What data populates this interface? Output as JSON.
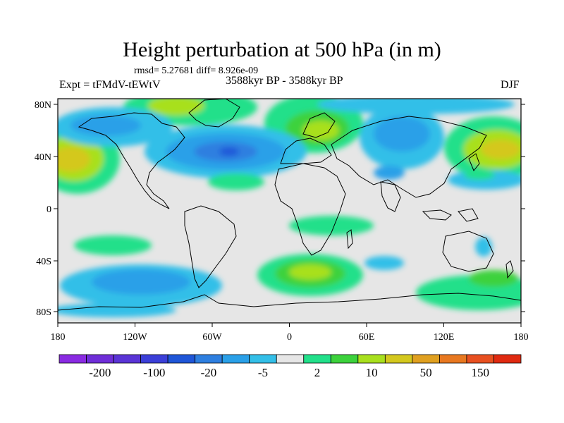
{
  "title": "Height perturbation at 500 hPa (in m)",
  "stats": "rmsd= 5.27681 diff= 8.926e-09",
  "left_label": "Expt = tFMdV-tEWtV",
  "center_label": "3588kyr BP - 3588kyr BP",
  "right_label": "DJF",
  "lat_ticks": [
    "80N",
    "40N",
    "0",
    "40S",
    "80S"
  ],
  "lon_ticks": [
    "180",
    "120W",
    "60W",
    "0",
    "60E",
    "120E",
    "180"
  ],
  "colorbar": {
    "colors": [
      "#8a2be2",
      "#6f2ed8",
      "#5a34d6",
      "#3b3fd8",
      "#1f56d8",
      "#2e7fe0",
      "#2aa0e8",
      "#33bfe8",
      "#e6e6e6",
      "#22e08a",
      "#3cd23c",
      "#a8e01e",
      "#d4c81e",
      "#e0a020",
      "#e87820",
      "#e85020",
      "#e02a10"
    ],
    "labels": [
      "-200",
      "-100",
      "-20",
      "-5",
      "2",
      "10",
      "50",
      "150"
    ]
  },
  "colors": {
    "ocean": "#e6e6e6",
    "coast": "#000000"
  }
}
